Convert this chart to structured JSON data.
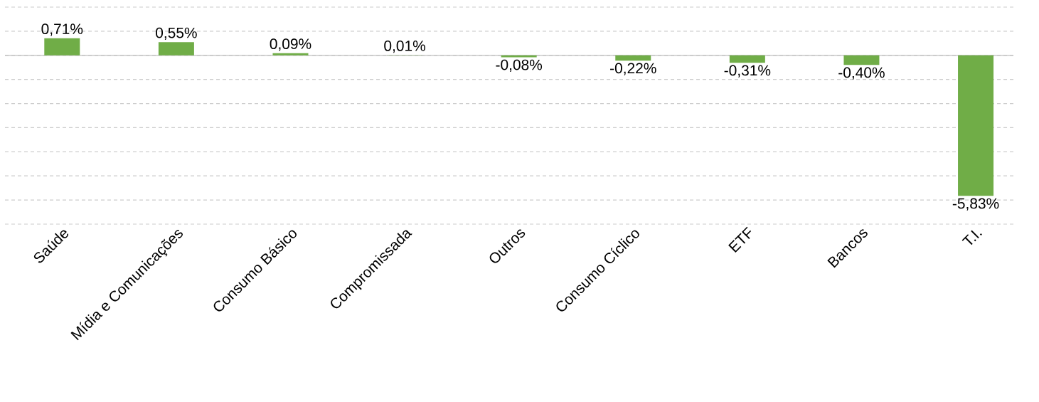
{
  "chart_data": {
    "type": "bar",
    "categories": [
      "Saúde",
      "Mídia e Comunicações",
      "Consumo Básico",
      "Compromissada",
      "Outros",
      "Consumo Cíclico",
      "ETF",
      "Bancos",
      "T.I."
    ],
    "values": [
      0.71,
      0.55,
      0.09,
      0.01,
      -0.08,
      -0.22,
      -0.31,
      -0.4,
      -5.83
    ],
    "value_labels": [
      "0,71%",
      "0,55%",
      "0,09%",
      "0,01%",
      "-0,08%",
      "-0,22%",
      "-0,31%",
      "-0,40%",
      "-5,83%"
    ],
    "color": "#70ad47",
    "ylim": [
      -7,
      2
    ],
    "yticks": [
      {
        "value": -7,
        "label": null
      },
      {
        "value": -6,
        "label": null
      },
      {
        "value": -5,
        "label": null
      },
      {
        "value": -4,
        "label": null
      },
      {
        "value": -3,
        "label": null
      },
      {
        "value": -2,
        "label": null
      },
      {
        "value": -1,
        "label": null
      },
      {
        "value": 0,
        "label": null
      },
      {
        "value": 1,
        "label": null
      },
      {
        "value": 2,
        "label": null
      }
    ],
    "tick_labels": "x",
    "grid": "y"
  }
}
